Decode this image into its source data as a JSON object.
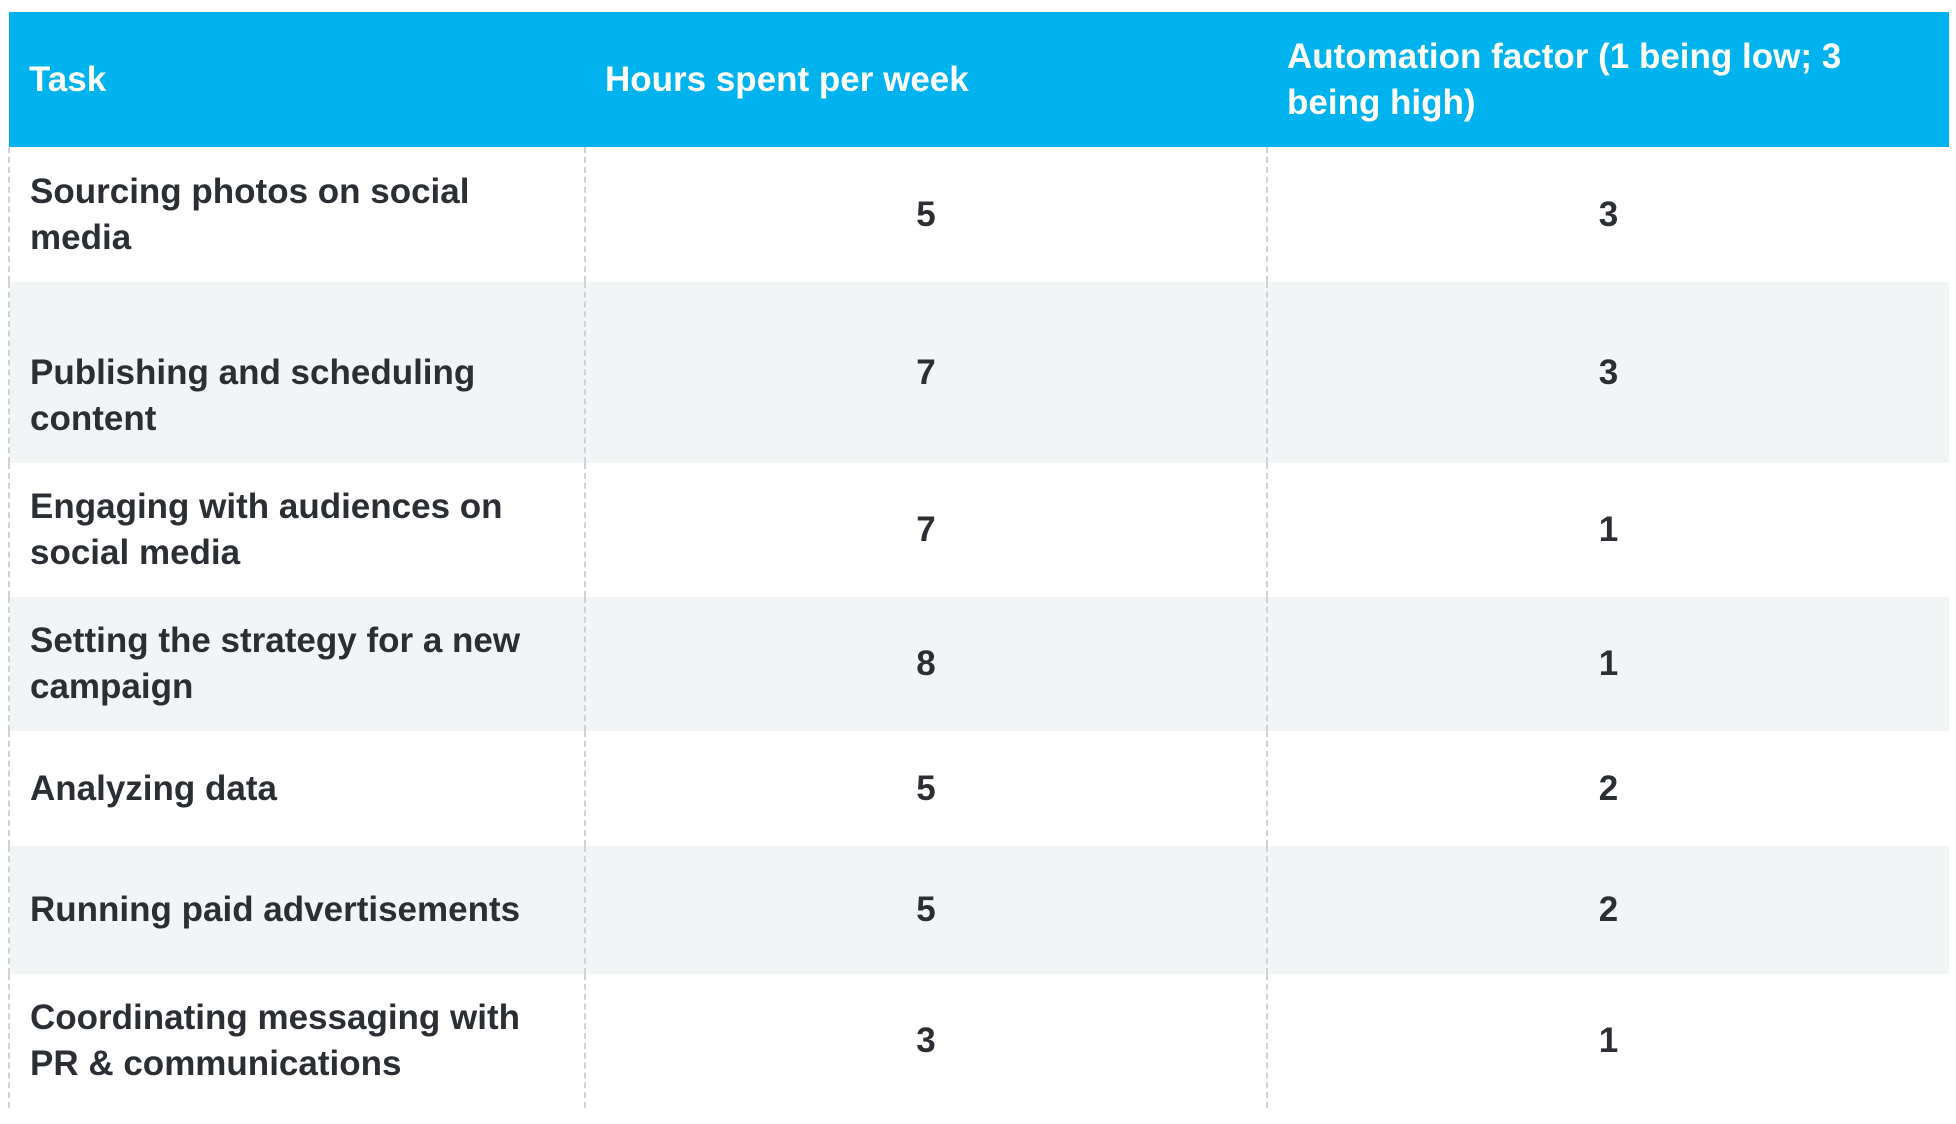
{
  "table": {
    "headers": [
      "Task",
      "Hours spent per week",
      "Automation factor (1 being low; 3 being high)"
    ],
    "rows": [
      {
        "task": "Sourcing photos on social media",
        "hours": "5",
        "factor": "3"
      },
      {
        "task": "Publishing and scheduling content",
        "hours": "7",
        "factor": "3"
      },
      {
        "task": "Engaging with audiences on social media",
        "hours": "7",
        "factor": "1"
      },
      {
        "task": "Setting the strategy for a new campaign",
        "hours": "8",
        "factor": "1"
      },
      {
        "task": "Analyzing data",
        "hours": "5",
        "factor": "2"
      },
      {
        "task": "Running paid advertisements",
        "hours": "5",
        "factor": "2"
      },
      {
        "task": "Coordinating messaging with PR & communications",
        "hours": "3",
        "factor": "1"
      }
    ]
  },
  "colors": {
    "header_bg": "#00b3ef",
    "header_text": "#ffffff",
    "row_alt_bg": "#f1f5f6",
    "body_text": "#2b2f33"
  }
}
